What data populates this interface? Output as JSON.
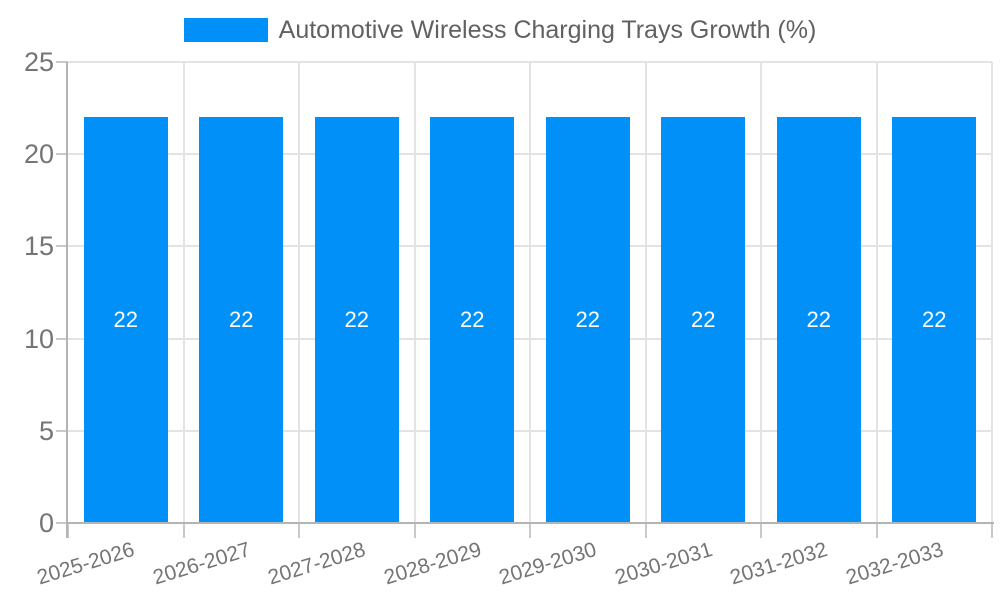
{
  "legend": {
    "label": "Automotive Wireless Charging Trays Growth (%)"
  },
  "chart_data": {
    "type": "bar",
    "title": "Automotive Wireless Charging Trays Growth (%)",
    "categories": [
      "2025-2026",
      "2026-2027",
      "2027-2028",
      "2028-2029",
      "2029-2030",
      "2030-2031",
      "2031-2032",
      "2032-2033"
    ],
    "series": [
      {
        "name": "Automotive Wireless Charging Trays Growth (%)",
        "color": "#0190F8",
        "values": [
          22,
          22,
          22,
          22,
          22,
          22,
          22,
          22
        ]
      }
    ],
    "bar_value_labels": [
      "22",
      "22",
      "22",
      "22",
      "22",
      "22",
      "22",
      "22"
    ],
    "xlabel": "",
    "ylabel": "",
    "ylim": [
      0,
      25
    ],
    "yticks": [
      0,
      5,
      10,
      15,
      20,
      25
    ],
    "grid": true,
    "legend_position": "top",
    "colors": {
      "bar": "#0190F8",
      "grid": "#e3e3e3",
      "axis": "#b4b4b4",
      "tick_text": "#757575",
      "legend_text": "#616161",
      "bar_label_text": "#ffffff",
      "background": "#ffffff"
    }
  }
}
